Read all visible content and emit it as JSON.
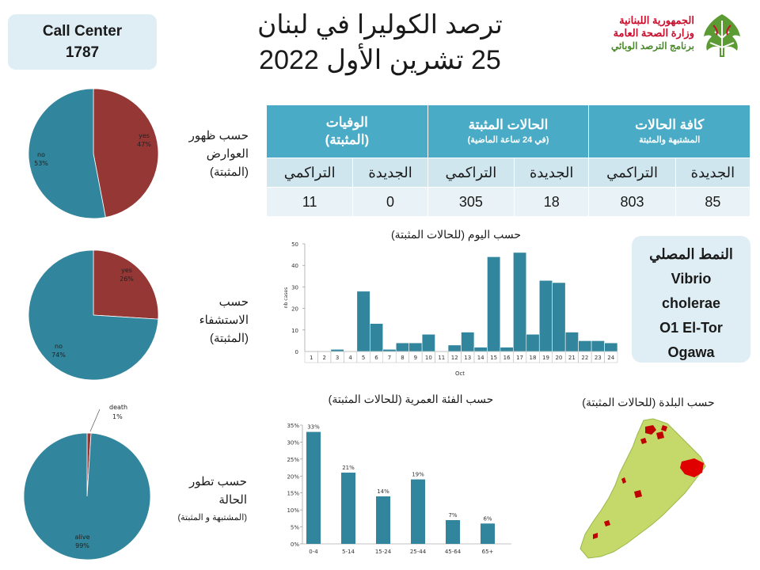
{
  "call_center": {
    "line1": "Call Center",
    "line2": "1787"
  },
  "title": {
    "line1": "ترصد الكوليرا في لبنان",
    "line2": "25 تشرين الأول 2022"
  },
  "logo": {
    "line1": "الجمهورية اللبنانية",
    "line2": "وزارة الصحة العامة",
    "line3": "برنامج الترصد الوبائي",
    "icon": "cedar-tree-icon"
  },
  "table": {
    "groups": [
      {
        "title": "كافة الحالات",
        "subtitle": "المشتبهة والمثبتة"
      },
      {
        "title": "الحالات المثبتة",
        "subtitle": "(في 24 ساعة الماضية)"
      },
      {
        "title": "الوفيات",
        "subtitle": "(المثبتة)"
      }
    ],
    "sub_headers": [
      "الجديدة",
      "التراكمي",
      "الجديدة",
      "التراكمي",
      "الجديدة",
      "التراكمي"
    ],
    "values": [
      "85",
      "803",
      "18",
      "305",
      "0",
      "11"
    ]
  },
  "side_labels": {
    "symptoms": [
      "حسب ظهور",
      "العوارض",
      "(المثبتة)"
    ],
    "hospital": [
      "حسب",
      "الاستشفاء",
      "(المثبتة)"
    ],
    "outcome": [
      "حسب تطور",
      "الحالة",
      "(المشتبهة و المثبتة)"
    ]
  },
  "strain": {
    "heading": "النمط المصلي",
    "lines": [
      "Vibrio",
      "cholerae",
      "O1 El-Tor",
      "Ogawa"
    ]
  },
  "map": {
    "title": "حسب البلدة (للحالات المثبتة)"
  },
  "colors": {
    "teal": "#31859c",
    "red": "#953735",
    "table_header": "#4aabc6",
    "map_green": "#c4d96a",
    "map_red": "#e00000"
  },
  "chart_data": [
    {
      "type": "pie",
      "slices": [
        {
          "label": "yes",
          "value": 47
        },
        {
          "label": "no",
          "value": 53
        }
      ]
    },
    {
      "type": "pie",
      "slices": [
        {
          "label": "yes",
          "value": 26
        },
        {
          "label": "no",
          "value": 74
        }
      ]
    },
    {
      "type": "pie",
      "slices": [
        {
          "label": "death",
          "value": 1
        },
        {
          "label": "alive",
          "value": 99
        }
      ]
    },
    {
      "type": "bar",
      "title": "حسب اليوم (للحالات المثبتة)",
      "xlabel": "Oct",
      "ylabel": "nb cases",
      "ylim": [
        0,
        50
      ],
      "yticks": [
        0,
        10,
        20,
        30,
        40,
        50
      ],
      "categories": [
        "1",
        "2",
        "3",
        "4",
        "5",
        "6",
        "7",
        "8",
        "9",
        "10",
        "11",
        "12",
        "13",
        "14",
        "15",
        "16",
        "17",
        "18",
        "19",
        "20",
        "21",
        "22",
        "23",
        "24"
      ],
      "values": [
        0,
        0,
        1,
        0,
        28,
        13,
        1,
        4,
        4,
        8,
        0,
        3,
        9,
        2,
        44,
        2,
        46,
        8,
        33,
        32,
        9,
        5,
        5,
        4
      ]
    },
    {
      "type": "bar",
      "title": "حسب الفئة العمرية (للحالات المثبتة)",
      "ylim": [
        0,
        35
      ],
      "yticks": [
        0,
        5,
        10,
        15,
        20,
        25,
        30,
        35
      ],
      "categories": [
        "0-4",
        "5-14",
        "15-24",
        "25-44",
        "45-64",
        "65+"
      ],
      "values": [
        33,
        21,
        14,
        19,
        7,
        6
      ]
    }
  ]
}
